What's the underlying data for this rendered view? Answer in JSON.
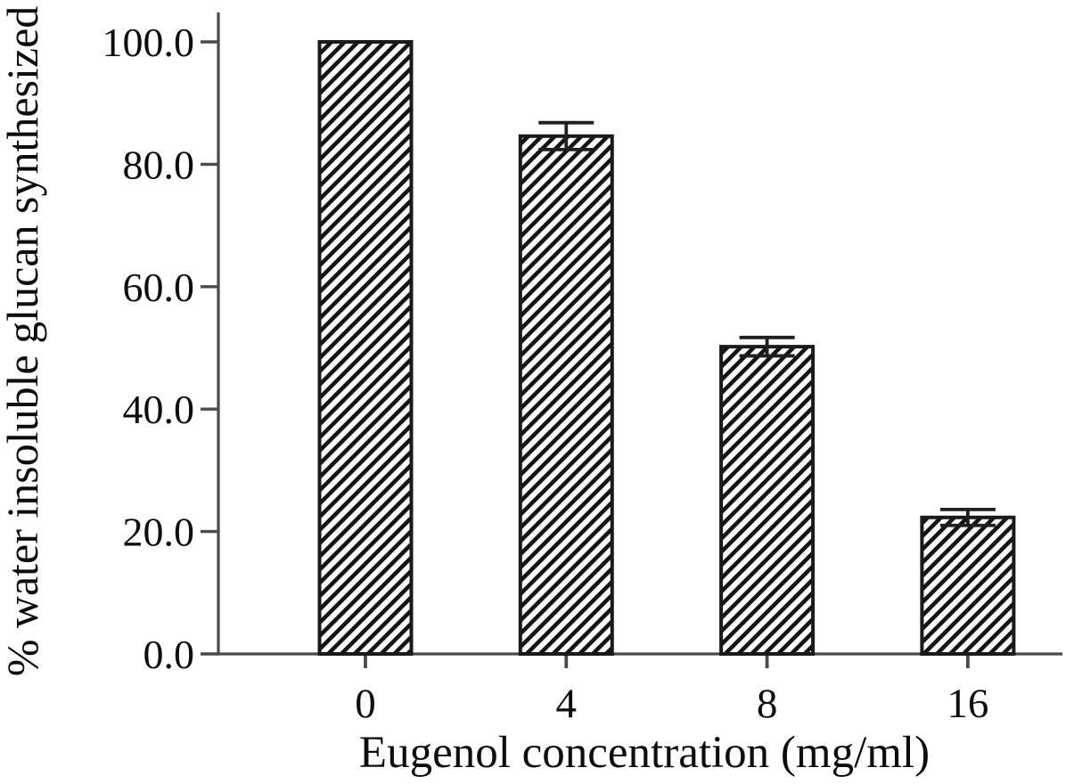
{
  "figure": {
    "background": "#ffffff"
  },
  "chart_data": {
    "type": "bar",
    "title": "",
    "xlabel": "Eugenol concentration (mg/ml)",
    "ylabel": "% water insoluble glucan synthesized",
    "categories": [
      "0",
      "4",
      "8",
      "16"
    ],
    "values": [
      100.0,
      84.6,
      50.2,
      22.3
    ],
    "errors": [
      0,
      2.2,
      1.5,
      1.3
    ],
    "ylim": [
      0,
      100
    ],
    "ytick_values": [
      0,
      20,
      40,
      60,
      80,
      100
    ],
    "ytick_labels": [
      "0.0",
      "20.0",
      "40.0",
      "60.0",
      "80.0",
      "100.0"
    ],
    "bar_style": "diagonal-hatch",
    "grid": false,
    "legend": "none",
    "colors": {
      "bar_fill": "#ffffff",
      "hatch": "#141414",
      "bar_stroke": "#1a1a1a",
      "error_bar": "#1f1f1f",
      "axis": "#4a4a4a",
      "text": "#0d0d0d"
    }
  }
}
